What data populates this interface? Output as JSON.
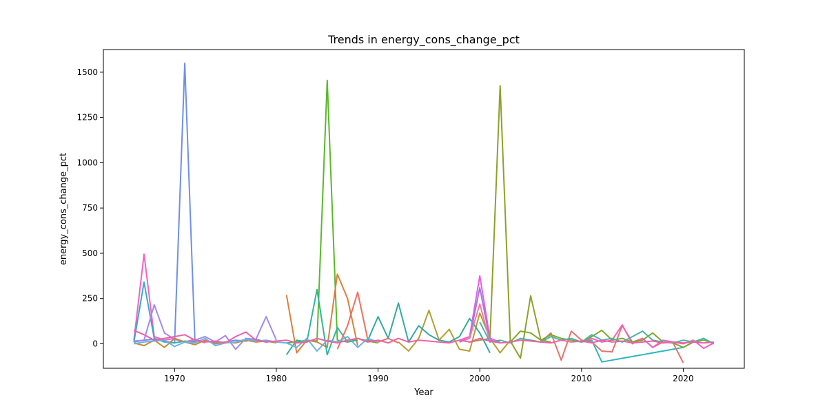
{
  "chart_data": {
    "type": "line",
    "title": "Trends in energy_cons_change_pct",
    "xlabel": "Year",
    "ylabel": "energy_cons_change_pct",
    "xlim": [
      1963,
      2026
    ],
    "ylim": [
      -135,
      1625
    ],
    "xticks": [
      1970,
      1980,
      1990,
      2000,
      2010,
      2020
    ],
    "yticks": [
      0,
      250,
      500,
      750,
      1000,
      1250,
      1500
    ],
    "grid": false,
    "legend": "none",
    "series": [
      {
        "color": "#6f8fe8",
        "x": [
          1966,
          1967,
          1968,
          1969,
          1970,
          1971,
          1972,
          1973,
          1974,
          1975,
          1976,
          1977,
          1978,
          1979,
          1980
        ],
        "y": [
          10,
          20,
          25,
          15,
          5,
          1550,
          10,
          15,
          5,
          10,
          20,
          15,
          25,
          10,
          15
        ]
      },
      {
        "color": "#5ab82b",
        "x": [
          1981,
          1982,
          1983,
          1984,
          1985,
          1986,
          1987,
          1988,
          1989,
          1990
        ],
        "y": [
          5,
          10,
          20,
          15,
          1455,
          20,
          10,
          30,
          15,
          5
        ]
      },
      {
        "color": "#8fa02a",
        "x": [
          1999,
          2000,
          2001,
          2002,
          2003,
          2004,
          2005,
          2006,
          2007
        ],
        "y": [
          10,
          20,
          30,
          1425,
          15,
          -80,
          265,
          20,
          10
        ]
      },
      {
        "color": "#f462c3",
        "x": [
          1966,
          1967,
          1968,
          1969,
          1970,
          1971,
          1972,
          1973
        ],
        "y": [
          20,
          495,
          40,
          20,
          30,
          10,
          25,
          5
        ]
      },
      {
        "color": "#38a9c9",
        "x": [
          1966,
          1967,
          1968,
          1969,
          1970,
          1971,
          1972
        ],
        "y": [
          10,
          340,
          30,
          10,
          5,
          15,
          10
        ]
      },
      {
        "color": "#a18aee",
        "x": [
          1966,
          1967,
          1968,
          1969,
          1970,
          1971,
          1972,
          1973,
          1974,
          1975,
          1976,
          1977,
          1978,
          1979,
          1980
        ],
        "y": [
          15,
          20,
          215,
          60,
          25,
          10,
          20,
          40,
          10,
          45,
          -30,
          30,
          25,
          150,
          20
        ]
      },
      {
        "color": "#d6813a",
        "x": [
          1981,
          1982,
          1983,
          1984,
          1985,
          1986,
          1987,
          1988
        ],
        "y": [
          270,
          -50,
          20,
          10,
          -20,
          385,
          250,
          -10
        ]
      },
      {
        "color": "#2fb59b",
        "x": [
          1981,
          1982,
          1983,
          1984,
          1985,
          1986,
          1987,
          1988
        ],
        "y": [
          -60,
          20,
          10,
          300,
          -60,
          90,
          10,
          20
        ]
      },
      {
        "color": "#ef6f5e",
        "x": [
          1986,
          1987,
          1988,
          1989,
          1990,
          1991,
          1992
        ],
        "y": [
          -30,
          100,
          285,
          20,
          10,
          30,
          5
        ]
      },
      {
        "color": "#b59d30",
        "x": [
          1992,
          1993,
          1994,
          1995,
          1996,
          1997,
          1998,
          1999,
          2000,
          2001,
          2002,
          2003
        ],
        "y": [
          10,
          -40,
          30,
          185,
          20,
          80,
          -30,
          -40,
          170,
          30,
          -50,
          20
        ]
      },
      {
        "color": "#33a9a2",
        "x": [
          1989,
          1990,
          1991,
          1992,
          1993,
          1994,
          1995,
          1996,
          1997,
          1998,
          1999,
          2000,
          2001
        ],
        "y": [
          20,
          150,
          30,
          225,
          10,
          100,
          50,
          20,
          10,
          40,
          140,
          60,
          -50
        ]
      },
      {
        "color": "#e75fe6",
        "x": [
          1998,
          1999,
          2000,
          2001,
          2002
        ],
        "y": [
          20,
          40,
          375,
          30,
          10
        ]
      },
      {
        "color": "#9f78e0",
        "x": [
          1998,
          1999,
          2000,
          2001,
          2002
        ],
        "y": [
          10,
          30,
          310,
          20,
          5
        ]
      },
      {
        "color": "#f47a9e",
        "x": [
          1998,
          1999,
          2000,
          2001
        ],
        "y": [
          15,
          30,
          220,
          10
        ]
      },
      {
        "color": "#2ab7c1",
        "x": [
          2010,
          2011,
          2012,
          2013,
          2014,
          2015,
          2016,
          2017,
          2018,
          2019,
          2020,
          2021,
          2022,
          2023
        ],
        "y": [
          10,
          20,
          -100,
          -90,
          -80,
          -70,
          -60,
          -50,
          -40,
          -30,
          -20,
          10,
          30,
          0
        ]
      },
      {
        "color": "#e8716b",
        "x": [
          2005,
          2006,
          2007,
          2008,
          2009,
          2010,
          2011,
          2012,
          2013,
          2014,
          2015,
          2016,
          2017,
          2018,
          2019,
          2020
        ],
        "y": [
          20,
          10,
          60,
          -90,
          70,
          20,
          10,
          -40,
          -45,
          100,
          10,
          30,
          -20,
          10,
          5,
          -105
        ]
      },
      {
        "color": "#f062bd",
        "x": [
          2009,
          2010,
          2011,
          2012,
          2013,
          2014,
          2015,
          2016,
          2017,
          2018,
          2019,
          2020,
          2021,
          2022,
          2023
        ],
        "y": [
          20,
          10,
          30,
          10,
          20,
          105,
          0,
          30,
          -20,
          20,
          10,
          0,
          20,
          -25,
          5
        ]
      },
      {
        "color": "#79a82c",
        "x": [
          2003,
          2004,
          2005,
          2006,
          2007,
          2008,
          2009,
          2010,
          2011,
          2012,
          2013,
          2014,
          2015,
          2016,
          2017,
          2018,
          2019,
          2020,
          2021,
          2022,
          2023
        ],
        "y": [
          10,
          70,
          60,
          20,
          50,
          30,
          20,
          10,
          40,
          75,
          20,
          30,
          10,
          20,
          60,
          10,
          5,
          -20,
          10,
          20,
          5
        ]
      },
      {
        "color": "#4ab4a0",
        "x": [
          2000,
          2001,
          2002,
          2003,
          2004,
          2005,
          2006,
          2007,
          2008,
          2009,
          2010,
          2011,
          2012,
          2013,
          2014,
          2015,
          2016,
          2017,
          2018,
          2019,
          2020,
          2021,
          2022,
          2023
        ],
        "y": [
          120,
          10,
          20,
          5,
          30,
          20,
          10,
          40,
          20,
          30,
          10,
          50,
          20,
          30,
          10,
          40,
          70,
          20,
          10,
          5,
          20,
          10,
          30,
          0
        ]
      },
      {
        "color": "#c58b30",
        "x": [
          1966,
          1967,
          1968,
          1969,
          1970,
          1971,
          1972,
          1973,
          1974,
          1975,
          1976,
          1977,
          1978,
          1979,
          1980
        ],
        "y": [
          5,
          -10,
          20,
          -20,
          30,
          10,
          -5,
          20,
          0,
          10,
          5,
          20,
          10,
          15,
          5
        ]
      },
      {
        "color": "#6cb3e0",
        "x": [
          1966,
          1967,
          1968,
          1969,
          1970,
          1971,
          1972,
          1973,
          1974,
          1975,
          1976,
          1977,
          1978,
          1979,
          1980,
          1981,
          1982,
          1983,
          1984,
          1985,
          1986,
          1987,
          1988,
          1989,
          1990
        ],
        "y": [
          0,
          10,
          15,
          20,
          -15,
          10,
          5,
          30,
          -10,
          5,
          10,
          25,
          15,
          20,
          10,
          5,
          -20,
          30,
          -40,
          20,
          10,
          40,
          -20,
          30,
          10
        ]
      },
      {
        "color": "#f05fa8",
        "x": [
          1966,
          1967,
          1968,
          1969,
          1970,
          1971,
          1972,
          1973,
          1974,
          1975,
          1976,
          1977,
          1978,
          1979,
          1980,
          1981,
          1982,
          1983,
          1984,
          1985,
          1986,
          1987,
          1988,
          1989,
          1990,
          1991,
          1992,
          1993,
          1994,
          1995,
          1996,
          1997,
          1998,
          1999,
          2000,
          2001,
          2002,
          2003,
          2004,
          2005,
          2006,
          2007,
          2008,
          2009,
          2010,
          2011,
          2012,
          2013,
          2014,
          2015,
          2016,
          2017,
          2018,
          2019,
          2020,
          2021,
          2022,
          2023
        ],
        "y": [
          75,
          50,
          20,
          30,
          40,
          50,
          20,
          10,
          15,
          5,
          40,
          65,
          20,
          10,
          15,
          20,
          5,
          10,
          30,
          15,
          5,
          20,
          30,
          10,
          20,
          5,
          30,
          10,
          20,
          15,
          10,
          5,
          20,
          10,
          30,
          15,
          5,
          10,
          20,
          15,
          10,
          5,
          20,
          10,
          15,
          5,
          20,
          10,
          15,
          5,
          10,
          15,
          5,
          10,
          5,
          10,
          5,
          10
        ]
      }
    ]
  }
}
